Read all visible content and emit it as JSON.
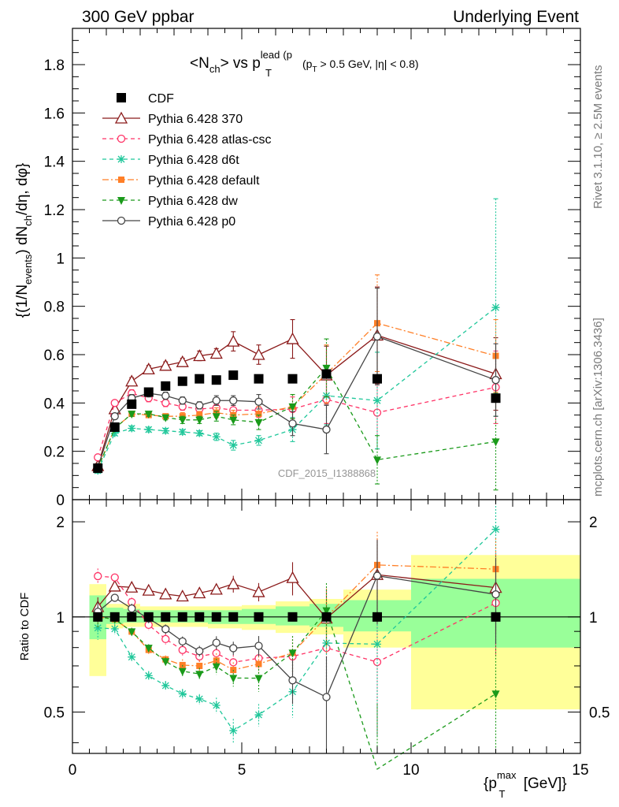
{
  "header": {
    "left": "300 GeV ppbar",
    "right": "Underlying Event"
  },
  "plot_title": {
    "main": "<N",
    "main_sub": "ch",
    "main_mid": "> vs p",
    "main_sub2": "T",
    "main_sup2": "lead",
    "cut_text_a": "(p",
    "cut_sub": "T",
    "cut_text_b": " > 0.5 GeV, |η| < 0.8)"
  },
  "side_labels": {
    "rivet": "Rivet 3.1.10, ≥ 2.5M events",
    "mcplots": "mcplots.cern.ch [arXiv:1306.3436]"
  },
  "watermark": "CDF_2015_I1388868",
  "axes": {
    "ylabel_main": "{(1/N_events) dN_ch/dη, dφ}",
    "ylabel_ratio": "Ratio to CDF",
    "xlabel": "{p_T^max [GeV]}",
    "x_ticks": [
      "0",
      "5",
      "10",
      "15"
    ],
    "y_main_ticks": [
      "0",
      "0.2",
      "0.4",
      "0.6",
      "0.8",
      "1",
      "1.2",
      "1.4",
      "1.6",
      "1.8"
    ],
    "y_ratio_ticks": [
      "0.5",
      "1",
      "2"
    ]
  },
  "chart_data": {
    "type": "line",
    "x_label": "{p_T^max [GeV]}",
    "y_label": "{(1/N_events) dN_ch/dη, dφ}",
    "xlim": [
      0,
      15
    ],
    "ylim": [
      0,
      1.95
    ],
    "ratio_ylim": [
      0.37,
      2.35
    ],
    "ratio_log": true,
    "legend_position": "top-left",
    "x": [
      0.75,
      1.25,
      1.75,
      2.25,
      2.75,
      3.25,
      3.75,
      4.25,
      4.75,
      5.5,
      6.5,
      7.5,
      9.0,
      12.5
    ],
    "series": [
      {
        "name": "CDF",
        "color": "#000000",
        "marker": "square",
        "line": "none",
        "values": [
          0.13,
          0.3,
          0.395,
          0.445,
          0.47,
          0.49,
          0.5,
          0.495,
          0.515,
          0.5,
          0.5,
          0.52,
          0.5,
          0.42
        ]
      },
      {
        "name": "Pythia 6.428 370",
        "color": "#8b1a1a",
        "marker": "triangle-open",
        "line": "solid",
        "values": [
          0.14,
          0.375,
          0.49,
          0.54,
          0.555,
          0.57,
          0.595,
          0.605,
          0.655,
          0.6,
          0.665,
          0.515,
          0.68,
          0.52
        ],
        "errors": [
          0.01,
          0.01,
          0.015,
          0.015,
          0.015,
          0.015,
          0.02,
          0.02,
          0.04,
          0.04,
          0.08,
          0.12,
          0.2,
          0.15
        ]
      },
      {
        "name": "Pythia 6.428 atlas-csc",
        "color": "#ff3366",
        "marker": "circle-open",
        "line": "dashed",
        "values": [
          0.175,
          0.4,
          0.44,
          0.42,
          0.4,
          0.385,
          0.375,
          0.38,
          0.37,
          0.37,
          0.375,
          0.415,
          0.36,
          0.465
        ],
        "errors": [
          0.01,
          0.01,
          0.015,
          0.015,
          0.015,
          0.015,
          0.015,
          0.015,
          0.02,
          0.03,
          0.05,
          0.1,
          0.15,
          0.15
        ]
      },
      {
        "name": "Pythia 6.428 d6t",
        "color": "#1fc79a",
        "marker": "star",
        "line": "dashed",
        "values": [
          0.12,
          0.275,
          0.295,
          0.29,
          0.285,
          0.28,
          0.275,
          0.26,
          0.225,
          0.245,
          0.29,
          0.43,
          0.41,
          0.795
        ],
        "errors": [
          0.01,
          0.01,
          0.01,
          0.01,
          0.01,
          0.01,
          0.01,
          0.015,
          0.02,
          0.02,
          0.05,
          0.12,
          0.2,
          0.45
        ]
      },
      {
        "name": "Pythia 6.428 default",
        "color": "#ff7f27",
        "marker": "square-filled",
        "line": "dashdot",
        "values": [
          0.13,
          0.295,
          0.355,
          0.35,
          0.345,
          0.345,
          0.35,
          0.36,
          0.35,
          0.355,
          0.385,
          0.52,
          0.73,
          0.595
        ],
        "errors": [
          0.01,
          0.01,
          0.01,
          0.01,
          0.01,
          0.015,
          0.015,
          0.02,
          0.02,
          0.03,
          0.05,
          0.12,
          0.2,
          0.15
        ]
      },
      {
        "name": "Pythia 6.428 dw",
        "color": "#1a9a1a",
        "marker": "triangle-down-filled",
        "line": "dashed",
        "values": [
          0.13,
          0.295,
          0.355,
          0.355,
          0.34,
          0.33,
          0.33,
          0.345,
          0.33,
          0.32,
          0.385,
          0.545,
          0.165,
          0.24
        ],
        "errors": [
          0.01,
          0.01,
          0.01,
          0.01,
          0.01,
          0.015,
          0.015,
          0.02,
          0.02,
          0.03,
          0.05,
          0.12,
          0.1,
          0.2
        ]
      },
      {
        "name": "Pythia 6.428 p0",
        "color": "#444444",
        "marker": "circle-open",
        "line": "solid",
        "values": [
          0.135,
          0.345,
          0.42,
          0.44,
          0.43,
          0.41,
          0.39,
          0.41,
          0.41,
          0.405,
          0.315,
          0.29,
          0.675,
          0.495
        ],
        "errors": [
          0.01,
          0.01,
          0.015,
          0.015,
          0.015,
          0.015,
          0.015,
          0.02,
          0.02,
          0.03,
          0.05,
          0.1,
          0.2,
          0.15
        ]
      }
    ],
    "cdf_uncertainty_bands": [
      {
        "x0": 0.5,
        "x1": 1.0,
        "stat": [
          0.85,
          1.17
        ],
        "total": [
          0.65,
          1.27
        ]
      },
      {
        "x0": 1.0,
        "x1": 1.5,
        "stat": [
          0.95,
          1.07
        ],
        "total": [
          0.92,
          1.1
        ]
      },
      {
        "x0": 1.5,
        "x1": 2.0,
        "stat": [
          0.96,
          1.06
        ],
        "total": [
          0.93,
          1.1
        ]
      },
      {
        "x0": 2.0,
        "x1": 3.0,
        "stat": [
          0.96,
          1.05
        ],
        "total": [
          0.93,
          1.08
        ]
      },
      {
        "x0": 3.0,
        "x1": 4.0,
        "stat": [
          0.96,
          1.05
        ],
        "total": [
          0.93,
          1.08
        ]
      },
      {
        "x0": 4.0,
        "x1": 5.0,
        "stat": [
          0.95,
          1.05
        ],
        "total": [
          0.92,
          1.08
        ]
      },
      {
        "x0": 5.0,
        "x1": 6.0,
        "stat": [
          0.95,
          1.06
        ],
        "total": [
          0.91,
          1.09
        ]
      },
      {
        "x0": 6.0,
        "x1": 7.0,
        "stat": [
          0.94,
          1.08
        ],
        "total": [
          0.89,
          1.12
        ]
      },
      {
        "x0": 7.0,
        "x1": 8.0,
        "stat": [
          0.93,
          1.1
        ],
        "total": [
          0.88,
          1.14
        ]
      },
      {
        "x0": 8.0,
        "x1": 10.0,
        "stat": [
          0.9,
          1.13
        ],
        "total": [
          0.8,
          1.22
        ]
      },
      {
        "x0": 10.0,
        "x1": 15.0,
        "stat": [
          0.8,
          1.32
        ],
        "total": [
          0.51,
          1.57
        ]
      }
    ]
  }
}
